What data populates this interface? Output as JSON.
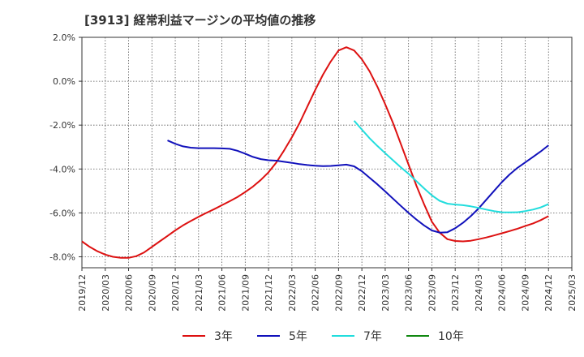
{
  "chart_data": {
    "type": "line",
    "title": "[3913]  経常利益マージンの平均値の推移",
    "xlabel": "",
    "ylabel": "",
    "ylim": [
      -8.5,
      2.0
    ],
    "yticks": [
      2.0,
      0.0,
      -2.0,
      -4.0,
      -6.0,
      -8.0
    ],
    "ytick_labels": [
      "2.0%",
      "0.0%",
      "-2.0%",
      "-4.0%",
      "-6.0%",
      "-8.0%"
    ],
    "x_range": [
      "2019/12",
      "2025/03"
    ],
    "categories": [
      "2019/12",
      "2020/03",
      "2020/06",
      "2020/09",
      "2020/12",
      "2021/03",
      "2021/06",
      "2021/09",
      "2021/12",
      "2022/03",
      "2022/06",
      "2022/09",
      "2022/12",
      "2023/03",
      "2023/06",
      "2023/09",
      "2023/12",
      "2024/03",
      "2024/06",
      "2024/09",
      "2024/12",
      "2025/03"
    ],
    "grid": true,
    "legend_position": "bottom",
    "series": [
      {
        "name": "3年",
        "color": "#dd1111",
        "points": [
          [
            "2019/12",
            -7.3
          ],
          [
            "2020/01",
            -7.55
          ],
          [
            "2020/02",
            -7.75
          ],
          [
            "2020/03",
            -7.9
          ],
          [
            "2020/04",
            -8.0
          ],
          [
            "2020/05",
            -8.05
          ],
          [
            "2020/06",
            -8.05
          ],
          [
            "2020/07",
            -7.97
          ],
          [
            "2020/08",
            -7.8
          ],
          [
            "2020/09",
            -7.55
          ],
          [
            "2020/10",
            -7.3
          ],
          [
            "2020/11",
            -7.05
          ],
          [
            "2020/12",
            -6.8
          ],
          [
            "2021/01",
            -6.57
          ],
          [
            "2021/02",
            -6.37
          ],
          [
            "2021/03",
            -6.18
          ],
          [
            "2021/04",
            -6.0
          ],
          [
            "2021/05",
            -5.83
          ],
          [
            "2021/06",
            -5.65
          ],
          [
            "2021/07",
            -5.47
          ],
          [
            "2021/08",
            -5.28
          ],
          [
            "2021/09",
            -5.05
          ],
          [
            "2021/10",
            -4.8
          ],
          [
            "2021/11",
            -4.5
          ],
          [
            "2021/12",
            -4.15
          ],
          [
            "2022/01",
            -3.7
          ],
          [
            "2022/02",
            -3.15
          ],
          [
            "2022/03",
            -2.55
          ],
          [
            "2022/04",
            -1.9
          ],
          [
            "2022/05",
            -1.15
          ],
          [
            "2022/06",
            -0.4
          ],
          [
            "2022/07",
            0.3
          ],
          [
            "2022/08",
            0.9
          ],
          [
            "2022/09",
            1.4
          ],
          [
            "2022/10",
            1.55
          ],
          [
            "2022/11",
            1.4
          ],
          [
            "2022/12",
            1.0
          ],
          [
            "2023/01",
            0.45
          ],
          [
            "2023/02",
            -0.25
          ],
          [
            "2023/03",
            -1.05
          ],
          [
            "2023/04",
            -1.9
          ],
          [
            "2023/05",
            -2.85
          ],
          [
            "2023/06",
            -3.8
          ],
          [
            "2023/07",
            -4.75
          ],
          [
            "2023/08",
            -5.6
          ],
          [
            "2023/09",
            -6.4
          ],
          [
            "2023/10",
            -6.9
          ],
          [
            "2023/11",
            -7.2
          ],
          [
            "2023/12",
            -7.28
          ],
          [
            "2024/01",
            -7.3
          ],
          [
            "2024/02",
            -7.27
          ],
          [
            "2024/03",
            -7.2
          ],
          [
            "2024/04",
            -7.12
          ],
          [
            "2024/05",
            -7.03
          ],
          [
            "2024/06",
            -6.93
          ],
          [
            "2024/07",
            -6.83
          ],
          [
            "2024/08",
            -6.72
          ],
          [
            "2024/09",
            -6.6
          ],
          [
            "2024/10",
            -6.48
          ],
          [
            "2024/11",
            -6.33
          ],
          [
            "2024/12",
            -6.15
          ]
        ]
      },
      {
        "name": "5年",
        "color": "#1111bb",
        "points": [
          [
            "2020/11",
            -2.7
          ],
          [
            "2020/12",
            -2.85
          ],
          [
            "2021/01",
            -2.97
          ],
          [
            "2021/02",
            -3.03
          ],
          [
            "2021/03",
            -3.05
          ],
          [
            "2021/04",
            -3.05
          ],
          [
            "2021/05",
            -3.05
          ],
          [
            "2021/06",
            -3.06
          ],
          [
            "2021/07",
            -3.08
          ],
          [
            "2021/08",
            -3.17
          ],
          [
            "2021/09",
            -3.3
          ],
          [
            "2021/10",
            -3.45
          ],
          [
            "2021/11",
            -3.55
          ],
          [
            "2021/12",
            -3.6
          ],
          [
            "2022/01",
            -3.62
          ],
          [
            "2022/02",
            -3.67
          ],
          [
            "2022/03",
            -3.72
          ],
          [
            "2022/04",
            -3.78
          ],
          [
            "2022/05",
            -3.82
          ],
          [
            "2022/06",
            -3.85
          ],
          [
            "2022/07",
            -3.87
          ],
          [
            "2022/08",
            -3.86
          ],
          [
            "2022/09",
            -3.83
          ],
          [
            "2022/10",
            -3.8
          ],
          [
            "2022/11",
            -3.88
          ],
          [
            "2022/12",
            -4.1
          ],
          [
            "2023/01",
            -4.4
          ],
          [
            "2023/02",
            -4.7
          ],
          [
            "2023/03",
            -5.02
          ],
          [
            "2023/04",
            -5.35
          ],
          [
            "2023/05",
            -5.68
          ],
          [
            "2023/06",
            -6.0
          ],
          [
            "2023/07",
            -6.3
          ],
          [
            "2023/08",
            -6.57
          ],
          [
            "2023/09",
            -6.8
          ],
          [
            "2023/10",
            -6.9
          ],
          [
            "2023/11",
            -6.88
          ],
          [
            "2023/12",
            -6.7
          ],
          [
            "2024/01",
            -6.45
          ],
          [
            "2024/02",
            -6.15
          ],
          [
            "2024/03",
            -5.8
          ],
          [
            "2024/04",
            -5.4
          ],
          [
            "2024/05",
            -5.0
          ],
          [
            "2024/06",
            -4.6
          ],
          [
            "2024/07",
            -4.25
          ],
          [
            "2024/08",
            -3.95
          ],
          [
            "2024/09",
            -3.7
          ],
          [
            "2024/10",
            -3.45
          ],
          [
            "2024/11",
            -3.2
          ],
          [
            "2024/12",
            -2.92
          ]
        ]
      },
      {
        "name": "7年",
        "color": "#22dddd",
        "points": [
          [
            "2022/11",
            -1.8
          ],
          [
            "2022/12",
            -2.2
          ],
          [
            "2023/01",
            -2.6
          ],
          [
            "2023/02",
            -2.95
          ],
          [
            "2023/03",
            -3.28
          ],
          [
            "2023/04",
            -3.6
          ],
          [
            "2023/05",
            -3.92
          ],
          [
            "2023/06",
            -4.22
          ],
          [
            "2023/07",
            -4.55
          ],
          [
            "2023/08",
            -4.88
          ],
          [
            "2023/09",
            -5.2
          ],
          [
            "2023/10",
            -5.45
          ],
          [
            "2023/11",
            -5.58
          ],
          [
            "2023/12",
            -5.62
          ],
          [
            "2024/01",
            -5.65
          ],
          [
            "2024/02",
            -5.7
          ],
          [
            "2024/03",
            -5.77
          ],
          [
            "2024/04",
            -5.85
          ],
          [
            "2024/05",
            -5.92
          ],
          [
            "2024/06",
            -5.97
          ],
          [
            "2024/07",
            -5.98
          ],
          [
            "2024/08",
            -5.97
          ],
          [
            "2024/09",
            -5.92
          ],
          [
            "2024/10",
            -5.85
          ],
          [
            "2024/11",
            -5.75
          ],
          [
            "2024/12",
            -5.6
          ]
        ]
      },
      {
        "name": "10年",
        "color": "#118811",
        "points": []
      }
    ]
  }
}
